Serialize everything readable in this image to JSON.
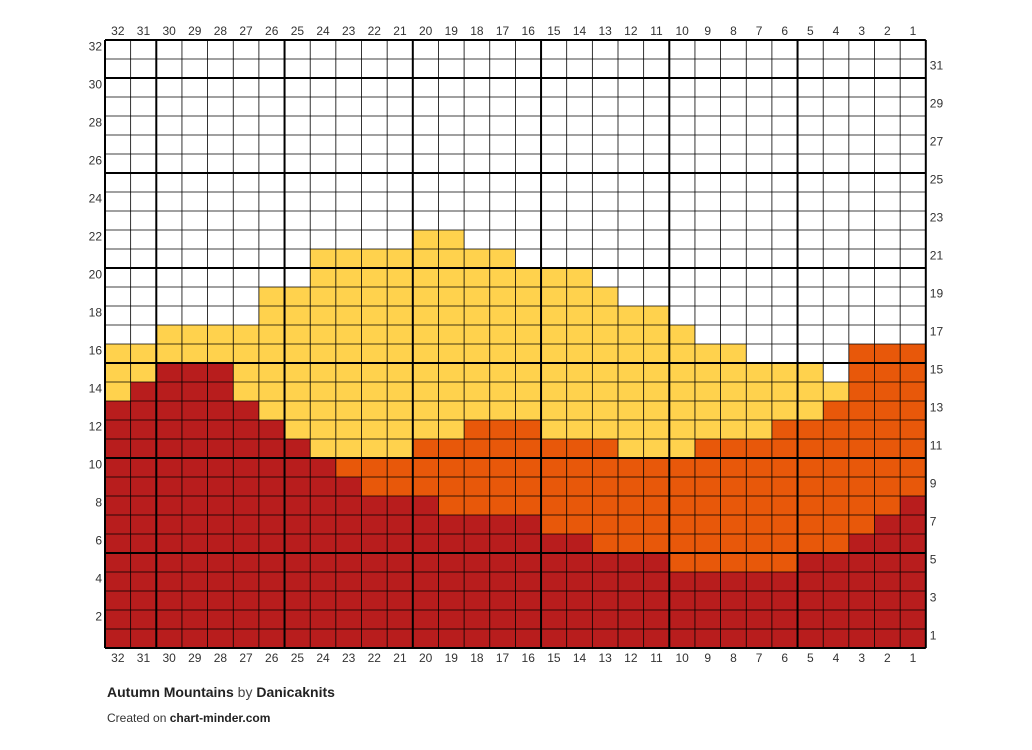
{
  "chart_data": {
    "type": "heatmap",
    "title": "Autumn Mountains",
    "author": "Danicaknits",
    "by_word": "by",
    "credit_prefix": "Created on",
    "credit_site": "chart-minder.com",
    "columns": 32,
    "rows": 32,
    "column_labels": [
      "32",
      "31",
      "30",
      "29",
      "28",
      "27",
      "26",
      "25",
      "24",
      "23",
      "22",
      "21",
      "20",
      "19",
      "18",
      "17",
      "16",
      "15",
      "14",
      "13",
      "12",
      "11",
      "10",
      "9",
      "8",
      "7",
      "6",
      "5",
      "4",
      "3",
      "2",
      "1"
    ],
    "left_row_labels": [
      "32",
      "30",
      "28",
      "26",
      "24",
      "22",
      "20",
      "18",
      "16",
      "14",
      "12",
      "10",
      "8",
      "6",
      "4",
      "2"
    ],
    "right_row_labels": [
      "31",
      "29",
      "27",
      "25",
      "23",
      "21",
      "19",
      "17",
      "15",
      "13",
      "11",
      "9",
      "7",
      "5",
      "3",
      "1"
    ],
    "grid": true,
    "colors": {
      "background": "#ffffff",
      "yellow": "#ffd24d",
      "orange": "#e8580a",
      "red": "#b81d1d",
      "grid_line": "#000000"
    },
    "legend": {
      "0": "background",
      "1": "yellow",
      "2": "orange",
      "3": "red"
    },
    "cells": [
      "00000000000000000000000000000000",
      "00000000000000000000000000000000",
      "00000000000000000000000000000000",
      "00000000000000000000000000000000",
      "00000000000000000000000000000000",
      "00000000000000000000000000000000",
      "00000000000000000000000000000000",
      "00000000000000000000000000000000",
      "00000000000000000000000000000000",
      "00000000000000000000000000000000",
      "00000000000011000000000000000000",
      "00000000111111110000000000000000",
      "00000000111111111110000000000000",
      "00000011111111111111000000000000",
      "00000011111111111111110000000000",
      "00111111111111111111111000000000",
      "11111111111111111111111110000222",
      "11333111111111111111111111110222",
      "13333111111111111111111111111222",
      "33333311111111111111111111112222",
      "33333331111111222111111111222222",
      "33333333111122222222111222222222",
      "33333333322222222222222222222222",
      "33333333332222222222222222222222",
      "33333333333332222222222222222223",
      "33333333333333333222222222222233",
      "33333333333333333332222222222333",
      "33333333333333333333332222233333",
      "33333333333333333333333333333333",
      "33333333333333333333333333333333",
      "33333333333333333333333333333333",
      "33333333333333333333333333333333"
    ]
  }
}
